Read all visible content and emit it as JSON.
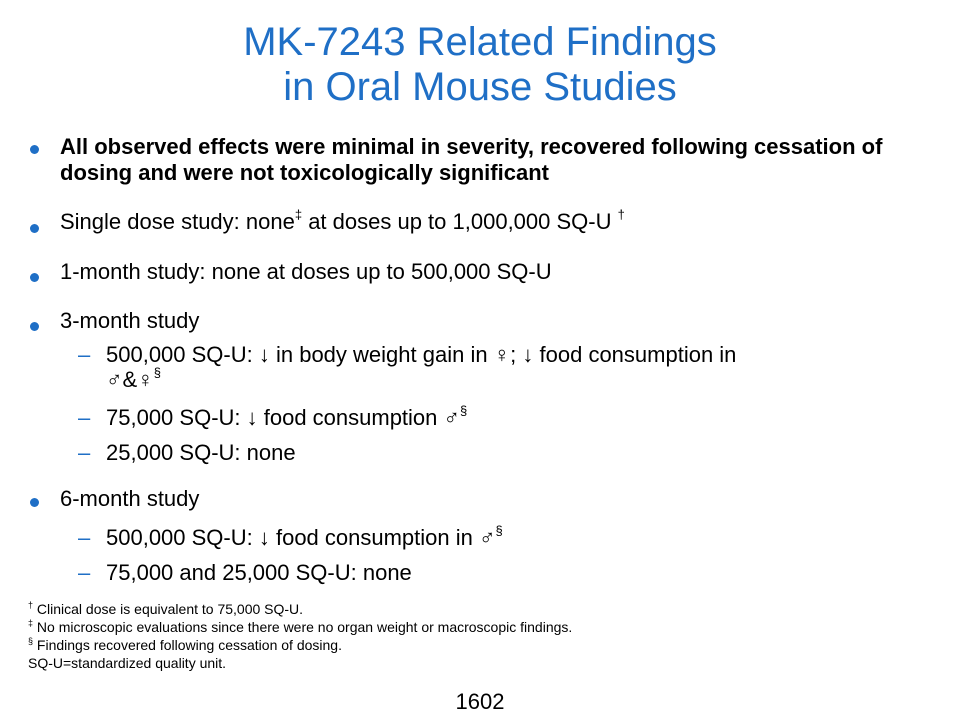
{
  "title": {
    "line1": "MK-7243 Related Findings",
    "line2": "in Oral Mouse Studies"
  },
  "bullets": {
    "b1": "All observed effects were minimal in severity, recovered following cessation of dosing and were not toxicologically significant",
    "b2_pre": "Single dose study: none",
    "b2_mark1": "‡",
    "b2_post": " at doses up to 1,000,000 SQ-U ",
    "b2_mark2": "†",
    "b3": "1-month study: none at doses up to 500,000 SQ-U",
    "b4": "3-month study",
    "b4_sub1_line1": "500,000 SQ-U: ↓ in body weight gain in ♀; ↓ food consumption in",
    "b4_sub1_line2": "♂&♀",
    "b4_sub1_mark": "§",
    "b4_sub2": "75,000 SQ-U: ↓ food consumption ♂",
    "b4_sub2_mark": "§",
    "b4_sub3": "25,000 SQ-U: none",
    "b5": "6-month study",
    "b5_sub1": "500,000 SQ-U: ↓ food consumption in ♂",
    "b5_sub1_mark": "§",
    "b5_sub2": "75,000 and 25,000 SQ-U: none",
    "dash": "–"
  },
  "footnotes": {
    "f1_mark": "†",
    "f1": " Clinical dose is equivalent to 75,000 SQ-U.",
    "f2_mark": "‡",
    "f2": " No microscopic evaluations since there were no organ weight or macroscopic findings.",
    "f3_mark": "§",
    "f3": " Findings recovered following cessation of dosing.",
    "f4": "SQ-U=standardized quality unit."
  },
  "page_number": "1602",
  "colors": {
    "accent": "#1f6fc6",
    "text": "#000000"
  }
}
